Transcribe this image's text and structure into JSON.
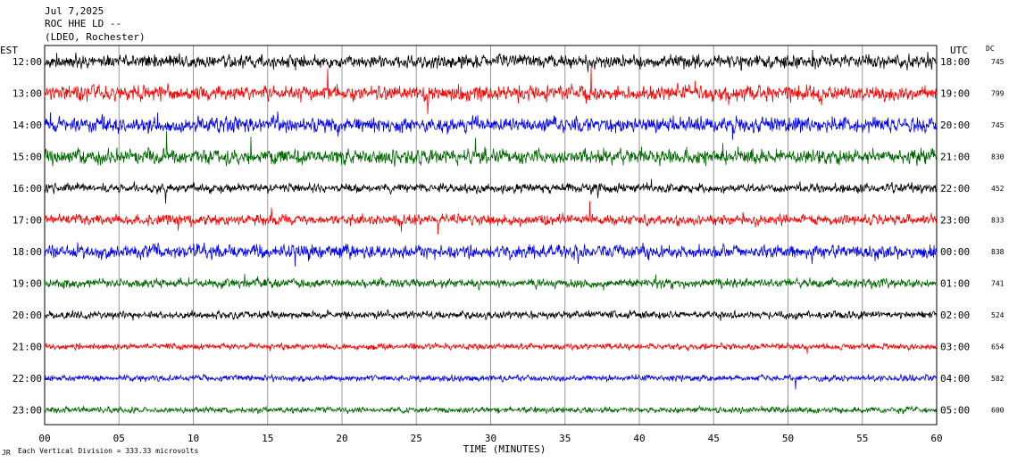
{
  "header": {
    "date": "Jul 7,2025",
    "station": "ROC HHE LD --",
    "network": "(LDEO, Rochester)"
  },
  "axes": {
    "left_label": "EST",
    "right_label": "UTC",
    "dc_label": "DC",
    "xlabel": "TIME (MINUTES)",
    "footnote": "Each Vertical Division = 333.33 microvolts",
    "logo_mark": "JR"
  },
  "chart_data": {
    "type": "line",
    "title": "",
    "xlabel": "TIME (MINUTES)",
    "ylabel": "",
    "x_ticks": [
      "00",
      "05",
      "10",
      "15",
      "20",
      "25",
      "30",
      "35",
      "40",
      "45",
      "50",
      "55",
      "60"
    ],
    "xlim": [
      0,
      60
    ],
    "grid": true,
    "gridline_minutes": [
      0,
      5,
      10,
      15,
      20,
      25,
      30,
      35,
      40,
      45,
      50,
      55,
      60
    ],
    "trace_colors": [
      "#000000",
      "#ff0000",
      "#0000ff",
      "#006600"
    ],
    "rows": [
      {
        "est": "12:00",
        "utc": "18:00",
        "dc": "745",
        "amplitude": 9
      },
      {
        "est": "13:00",
        "utc": "19:00",
        "dc": "799",
        "amplitude": 10
      },
      {
        "est": "14:00",
        "utc": "20:00",
        "dc": "745",
        "amplitude": 10
      },
      {
        "est": "15:00",
        "utc": "21:00",
        "dc": "830",
        "amplitude": 10
      },
      {
        "est": "16:00",
        "utc": "22:00",
        "dc": "452",
        "amplitude": 6
      },
      {
        "est": "17:00",
        "utc": "23:00",
        "dc": "833",
        "amplitude": 7
      },
      {
        "est": "18:00",
        "utc": "00:00",
        "dc": "838",
        "amplitude": 9
      },
      {
        "est": "19:00",
        "utc": "01:00",
        "dc": "741",
        "amplitude": 6
      },
      {
        "est": "20:00",
        "utc": "02:00",
        "dc": "524",
        "amplitude": 5
      },
      {
        "est": "21:00",
        "utc": "03:00",
        "dc": "654",
        "amplitude": 4
      },
      {
        "est": "22:00",
        "utc": "04:00",
        "dc": "582",
        "amplitude": 4
      },
      {
        "est": "23:00",
        "utc": "05:00",
        "dc": "600",
        "amplitude": 4
      }
    ]
  }
}
